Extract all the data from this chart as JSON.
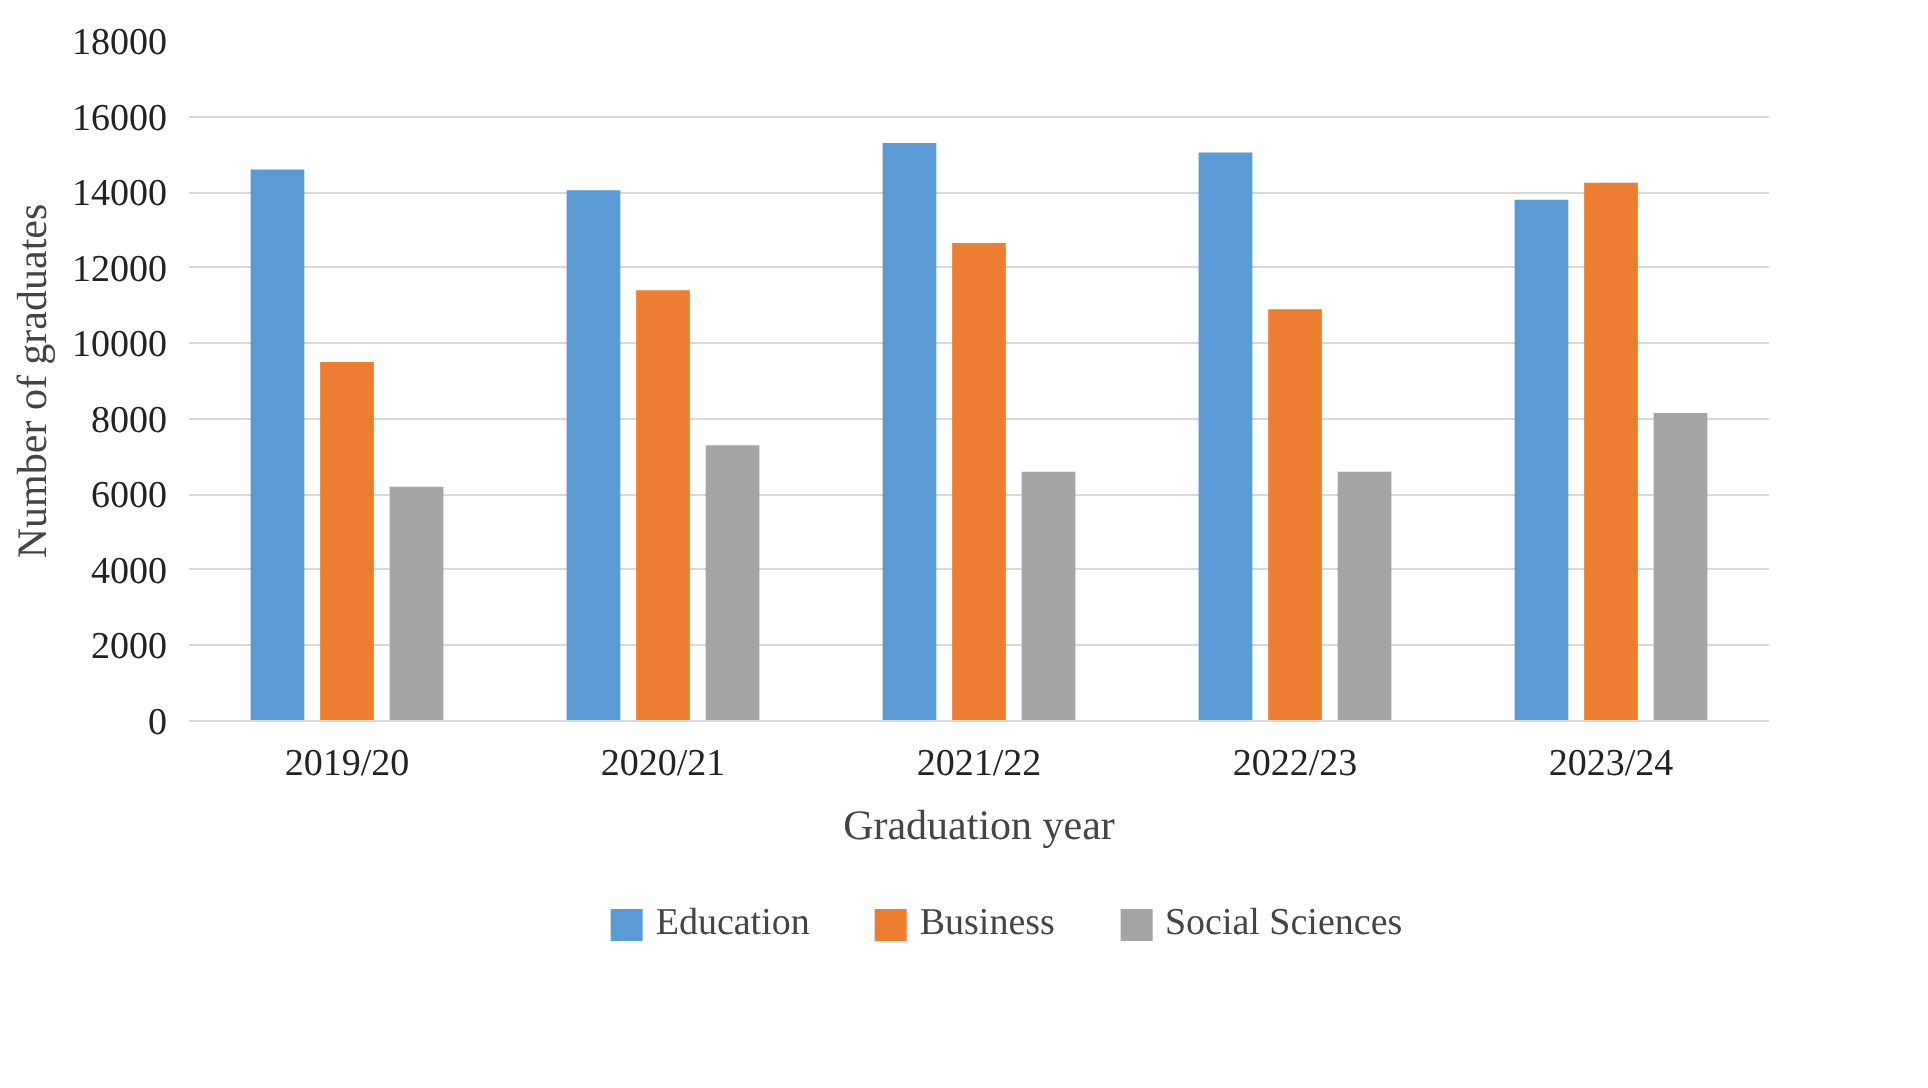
{
  "chart_data": {
    "type": "bar",
    "xlabel": "Graduation year",
    "ylabel": "Number of graduates",
    "categories": [
      "2019/20",
      "2020/21",
      "2021/22",
      "2022/23",
      "2023/24"
    ],
    "series": [
      {
        "name": "Education",
        "color": "#5b9bd5",
        "values": [
          14600,
          14050,
          15300,
          15050,
          13800
        ]
      },
      {
        "name": "Business",
        "color": "#ed7d31",
        "values": [
          9500,
          11400,
          12650,
          10900,
          14250
        ]
      },
      {
        "name": "Social Sciences",
        "color": "#a5a5a5",
        "values": [
          6200,
          7300,
          6600,
          6600,
          8150
        ]
      }
    ],
    "ylim": [
      0,
      18000
    ],
    "yticks": [
      0,
      2000,
      4000,
      6000,
      8000,
      10000,
      12000,
      14000,
      16000,
      18000
    ],
    "grid": "y",
    "legend": "bottom"
  }
}
